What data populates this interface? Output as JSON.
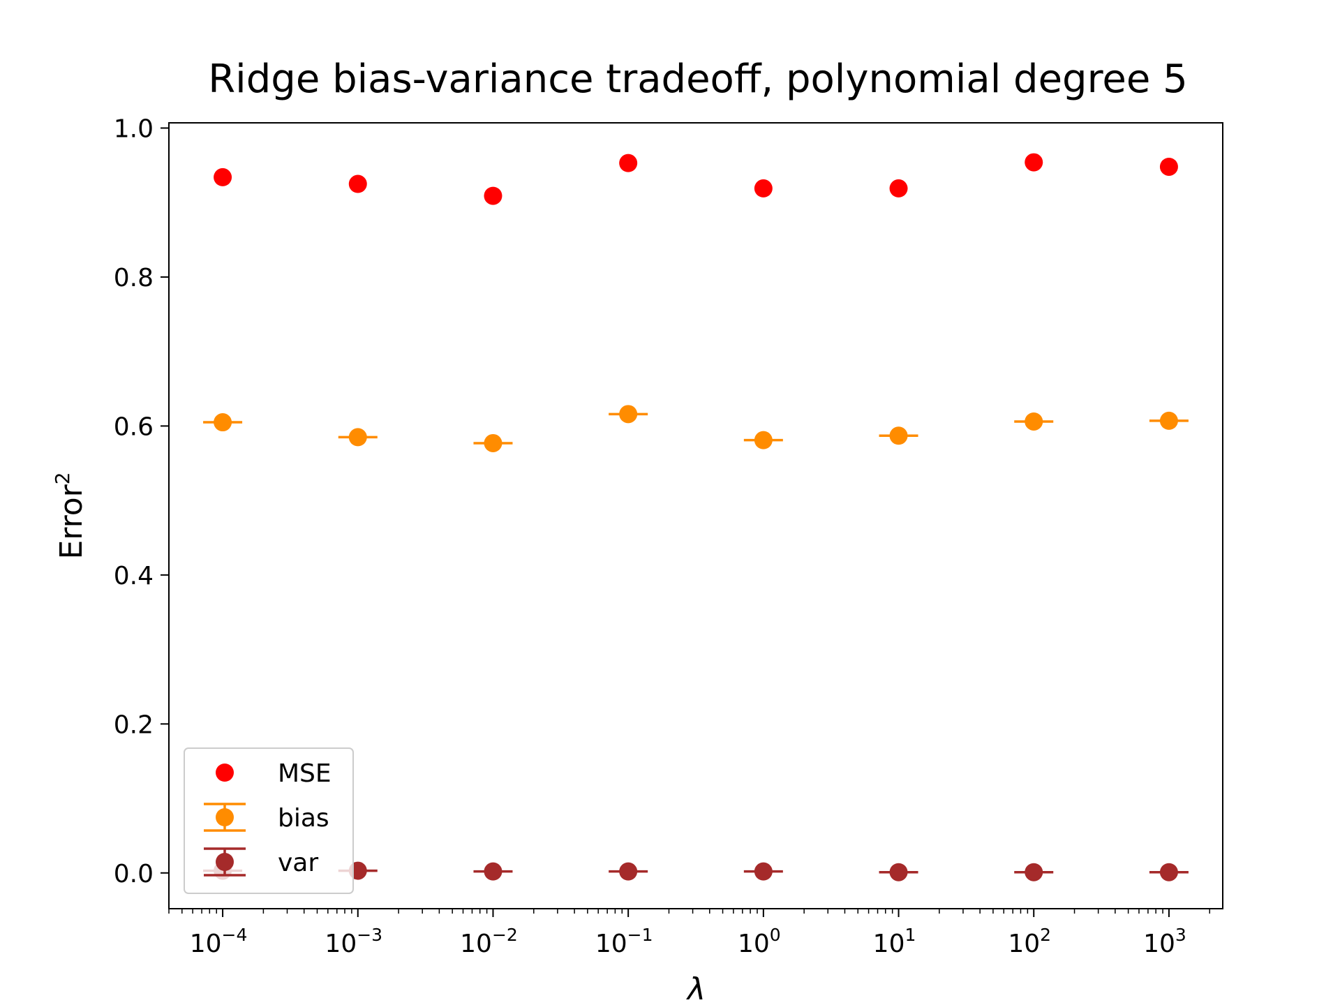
{
  "chart_data": {
    "type": "scatter",
    "title": "Ridge bias-variance tradeoff, polynomial degree 5",
    "xlabel": "λ",
    "ylabel_base": "Error",
    "ylabel_sup": "2",
    "xscale": "log",
    "xlim": [
      4e-05,
      2500
    ],
    "ylim": [
      -0.048,
      1.007
    ],
    "x": [
      0.0001,
      0.001,
      0.01,
      0.1,
      1,
      10,
      100,
      1000
    ],
    "x_tick_exponents": [
      "−4",
      "−3",
      "−2",
      "−1",
      "0",
      "1",
      "2",
      "3"
    ],
    "x_tick_base": "10",
    "y_ticks": [
      0.0,
      0.2,
      0.4,
      0.6,
      0.8,
      1.0
    ],
    "y_tick_labels": [
      "0.0",
      "0.2",
      "0.4",
      "0.6",
      "0.8",
      "1.0"
    ],
    "series": [
      {
        "name": "MSE",
        "color": "#ff0000",
        "kind": "scatter",
        "values": [
          0.934,
          0.925,
          0.909,
          0.953,
          0.919,
          0.919,
          0.954,
          0.948
        ]
      },
      {
        "name": "bias",
        "color": "#ff8c00",
        "kind": "errorbar",
        "values": [
          0.605,
          0.585,
          0.577,
          0.616,
          0.581,
          0.587,
          0.606,
          0.607
        ]
      },
      {
        "name": "var",
        "color": "#a52a2a",
        "kind": "errorbar",
        "values": [
          0.003,
          0.003,
          0.002,
          0.002,
          0.002,
          0.001,
          0.001,
          0.001
        ]
      }
    ],
    "legend_position": "lower-left",
    "grid": false
  }
}
